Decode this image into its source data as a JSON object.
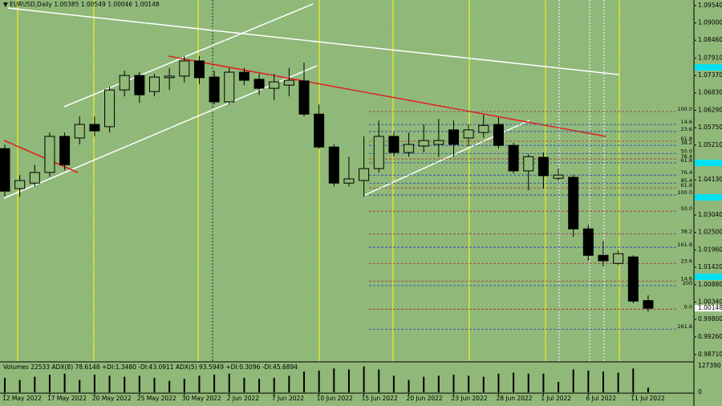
{
  "chart_data": {
    "type": "candlestick",
    "title": "EURUSD,Daily",
    "categories": [
      "12 May 2022",
      null,
      null,
      "17 May 2022",
      null,
      null,
      "20 May 2022",
      null,
      null,
      "25 May 2022",
      null,
      null,
      "30 May 2022",
      null,
      null,
      "2 Jun 2022",
      null,
      null,
      "7 Jun 2022",
      null,
      null,
      "10 Jun 2022",
      null,
      null,
      "15 Jun 2022",
      null,
      null,
      "20 Jun 2022",
      null,
      null,
      "23 Jun 2022",
      null,
      null,
      "28 Jun 2022",
      null,
      null,
      "1 Jul 2022",
      null,
      null,
      "6 Jul 2022",
      null,
      null,
      "11 Jul 2022",
      null
    ],
    "open": [
      1.051,
      1.0386,
      1.0403,
      1.0436,
      1.0548,
      1.0543,
      1.0585,
      1.0578,
      1.0692,
      1.0737,
      1.0687,
      1.073,
      1.0735,
      1.0782,
      1.0732,
      1.0655,
      1.0747,
      1.0725,
      1.0697,
      1.0707,
      1.072,
      1.0617,
      1.0515,
      1.0403,
      1.0411,
      1.0448,
      1.0548,
      1.0498,
      1.0518,
      1.0523,
      1.0568,
      1.0543,
      1.056,
      1.0585,
      1.052,
      1.0441,
      1.0483,
      1.0418,
      1.0421,
      1.0261,
      1.0179,
      1.0154,
      1.0174,
      1.00385
    ],
    "high": [
      1.0523,
      1.0428,
      1.046,
      1.056,
      1.056,
      1.061,
      1.061,
      1.0702,
      1.0752,
      1.0747,
      1.0742,
      1.076,
      1.0797,
      1.0797,
      1.0752,
      1.076,
      1.076,
      1.0742,
      1.0742,
      1.076,
      1.0777,
      1.0647,
      1.0523,
      1.0485,
      1.0548,
      1.0597,
      1.056,
      1.056,
      1.0585,
      1.0602,
      1.0597,
      1.0585,
      1.0615,
      1.0607,
      1.0528,
      1.0493,
      1.0498,
      1.0448,
      1.0428,
      1.0274,
      1.0224,
      1.0194,
      1.0179,
      1.00549
    ],
    "low": [
      1.0361,
      1.0361,
      1.0393,
      1.0423,
      1.0443,
      1.0523,
      1.0548,
      1.056,
      1.0672,
      1.0652,
      1.0672,
      1.0692,
      1.0715,
      1.071,
      1.0647,
      1.0647,
      1.0707,
      1.0677,
      1.066,
      1.0672,
      1.061,
      1.051,
      1.0393,
      1.0393,
      1.0361,
      1.0436,
      1.0485,
      1.0485,
      1.0498,
      1.0485,
      1.0485,
      1.0518,
      1.0543,
      1.051,
      1.0433,
      1.0381,
      1.0386,
      1.0411,
      1.0236,
      1.0162,
      1.0144,
      1.0149,
      1.003,
      1.00046
    ],
    "close": [
      1.0378,
      1.0411,
      1.0436,
      1.0548,
      1.046,
      1.0585,
      1.0565,
      1.0692,
      1.0737,
      1.0677,
      1.0732,
      1.0735,
      1.0782,
      1.073,
      1.0655,
      1.0747,
      1.0722,
      1.0697,
      1.0717,
      1.0722,
      1.0617,
      1.0515,
      1.0403,
      1.0416,
      1.0448,
      1.0548,
      1.0498,
      1.0523,
      1.0535,
      1.0535,
      1.0523,
      1.0568,
      1.0582,
      1.052,
      1.0441,
      1.0485,
      1.0426,
      1.0428,
      1.0261,
      1.0179,
      1.0162,
      1.0184,
      1.0037,
      1.00148
    ],
    "up_color": "#90b878",
    "down_color": "#000000",
    "ylim": [
      0.9851,
      1.0971
    ],
    "yticks": [
      {
        "value": 1.0954,
        "label": "1.09540"
      },
      {
        "value": 1.09,
        "label": "1.09000"
      },
      {
        "value": 1.0846,
        "label": "1.08460"
      },
      {
        "value": 1.0791,
        "label": "1.07910"
      },
      {
        "value": 1.0737,
        "label": "1.07370"
      },
      {
        "value": 1.0683,
        "label": "1.06830"
      },
      {
        "value": 1.0629,
        "label": "1.06290"
      },
      {
        "value": 1.0575,
        "label": "1.05750"
      },
      {
        "value": 1.0521,
        "label": "1.05210"
      },
      {
        "value": 1.0413,
        "label": "1.04130"
      },
      {
        "value": 1.0304,
        "label": "1.03040"
      },
      {
        "value": 1.025,
        "label": "1.02500"
      },
      {
        "value": 1.0196,
        "label": "1.01960"
      },
      {
        "value": 1.0142,
        "label": "1.01420"
      },
      {
        "value": 1.0088,
        "label": "1.00880"
      },
      {
        "value": 1.0034,
        "label": "1.00340"
      },
      {
        "value": 0.998,
        "label": "0.99800"
      },
      {
        "value": 0.9926,
        "label": "0.99260"
      },
      {
        "value": 0.9871,
        "label": "0.98710"
      }
    ],
    "grid": true,
    "levels": [
      {
        "label": "100.0",
        "value": 1.0625,
        "color": "#b03030"
      },
      {
        "label": "14.6",
        "value": 1.0585,
        "color": "#2040c0"
      },
      {
        "label": "23.6",
        "value": 1.0563,
        "color": "#2040c0"
      },
      {
        "label": "61.8",
        "value": 1.0533,
        "color": "#b03030"
      },
      {
        "label": "38.2",
        "value": 1.052,
        "color": "#2040c0"
      },
      {
        "label": "50.0",
        "value": 1.0495,
        "color": "#2040c0"
      },
      {
        "label": "76.4",
        "value": 1.0478,
        "color": "#b03030"
      },
      {
        "label": "61.8",
        "value": 1.0466,
        "color": "#2040c0"
      },
      {
        "label": "76.4",
        "value": 1.0428,
        "color": "#2040c0"
      },
      {
        "label": "85.4",
        "value": 1.0403,
        "color": "#2040c0"
      },
      {
        "label": "61.8",
        "value": 1.0388,
        "color": "#b03030"
      },
      {
        "label": "100.0",
        "value": 1.0366,
        "color": "#2040c0"
      },
      {
        "label": "50.0",
        "value": 1.0316,
        "color": "#b03030"
      },
      {
        "label": "38.2",
        "value": 1.0246,
        "color": "#b03030"
      },
      {
        "label": "161.8",
        "value": 1.0204,
        "color": "#2040c0"
      },
      {
        "label": "23.6",
        "value": 1.0154,
        "color": "#b03030"
      },
      {
        "label": "14.6",
        "value": 1.0099,
        "color": "#b03030"
      },
      {
        "label": "200",
        "value": 1.0085,
        "color": "#2040c0"
      },
      {
        "label": "0.0",
        "value": 1.0012,
        "color": "#b03030"
      },
      {
        "label": "261.8",
        "value": 0.995,
        "color": "#2040c0"
      }
    ],
    "volume": {
      "label": "Volumes",
      "values": [
        70000,
        60000,
        75000,
        85000,
        90000,
        60000,
        85000,
        80000,
        75000,
        80000,
        70000,
        55000,
        65000,
        80000,
        85000,
        90000,
        70000,
        65000,
        70000,
        80000,
        100000,
        105000,
        115000,
        110000,
        125000,
        110000,
        80000,
        60000,
        75000,
        80000,
        85000,
        80000,
        75000,
        90000,
        95000,
        90000,
        90000,
        50000,
        110000,
        105000,
        100000,
        95000,
        115000,
        22533
      ],
      "ylim": [
        0,
        127390
      ],
      "yticks": [
        0,
        127390
      ],
      "color": "#000000",
      "indicators": "ADX(8) 78.6148 +DI:1.3480 -DI:43.0911 ADX(5) 93.5949 +DI:0.3096 -DI:45.6894"
    }
  }
}
